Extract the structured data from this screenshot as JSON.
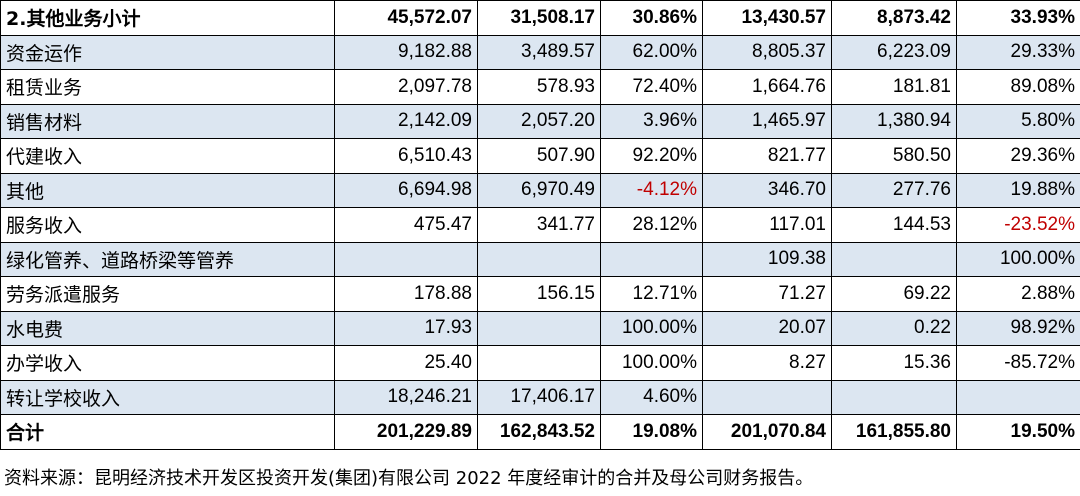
{
  "rows": [
    {
      "name": "2.其他业务小计",
      "c1": "45,572.07",
      "c2": "31,508.17",
      "c3": "30.86%",
      "c4": "13,430.57",
      "c5": "8,873.42",
      "c6": "33.93%"
    },
    {
      "name": "资金运作",
      "c1": "9,182.88",
      "c2": "3,489.57",
      "c3": "62.00%",
      "c4": "8,805.37",
      "c5": "6,223.09",
      "c6": "29.33%"
    },
    {
      "name": "租赁业务",
      "c1": "2,097.78",
      "c2": "578.93",
      "c3": "72.40%",
      "c4": "1,664.76",
      "c5": "181.81",
      "c6": "89.08%"
    },
    {
      "name": "销售材料",
      "c1": "2,142.09",
      "c2": "2,057.20",
      "c3": "3.96%",
      "c4": "1,465.97",
      "c5": "1,380.94",
      "c6": "5.80%"
    },
    {
      "name": "代建收入",
      "c1": "6,510.43",
      "c2": "507.90",
      "c3": "92.20%",
      "c4": "821.77",
      "c5": "580.50",
      "c6": "29.36%"
    },
    {
      "name": "其他",
      "c1": "6,694.98",
      "c2": "6,970.49",
      "c3": "-4.12%",
      "c4": "346.70",
      "c5": "277.76",
      "c6": "19.88%"
    },
    {
      "name": "服务收入",
      "c1": "475.47",
      "c2": "341.77",
      "c3": "28.12%",
      "c4": "117.01",
      "c5": "144.53",
      "c6": "-23.52%"
    },
    {
      "name": "绿化管养、道路桥梁等管养",
      "c1": "",
      "c2": "",
      "c3": "",
      "c4": "109.38",
      "c5": "",
      "c6": "100.00%"
    },
    {
      "name": "劳务派遣服务",
      "c1": "178.88",
      "c2": "156.15",
      "c3": "12.71%",
      "c4": "71.27",
      "c5": "69.22",
      "c6": "2.88%"
    },
    {
      "name": "水电费",
      "c1": "17.93",
      "c2": "",
      "c3": "100.00%",
      "c4": "20.07",
      "c5": "0.22",
      "c6": "98.92%"
    },
    {
      "name": "办学收入",
      "c1": "25.40",
      "c2": "",
      "c3": "100.00%",
      "c4": "8.27",
      "c5": "15.36",
      "c6": "-85.72%"
    },
    {
      "name": "转让学校收入",
      "c1": "18,246.21",
      "c2": "17,406.17",
      "c3": "4.60%",
      "c4": "",
      "c5": "",
      "c6": ""
    },
    {
      "name": "合计",
      "c1": "201,229.89",
      "c2": "162,843.52",
      "c3": "19.08%",
      "c4": "201,070.84",
      "c5": "161,855.80",
      "c6": "19.50%"
    }
  ],
  "source_note": "资料来源：昆明经济技术开发区投资开发(集团)有限公司 2022 年度经审计的合并及母公司财务报告。",
  "colors": {
    "row_shade": "#dce6f1",
    "negative": "#c00000"
  }
}
